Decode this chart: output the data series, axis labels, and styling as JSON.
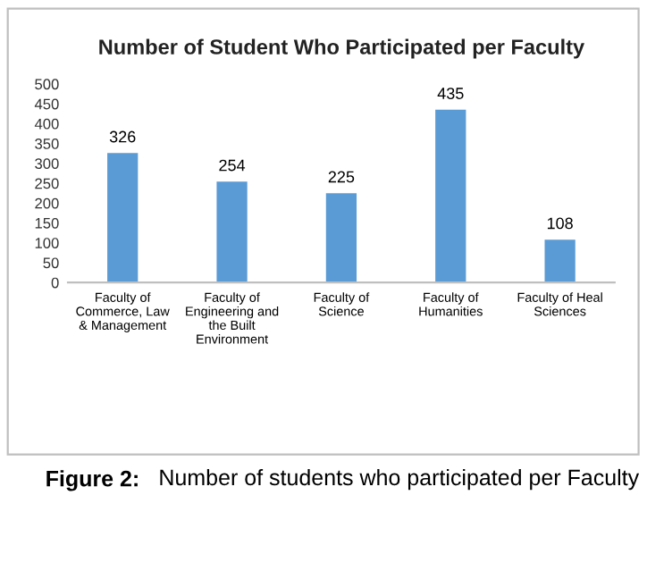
{
  "chart_data": {
    "type": "bar",
    "title": "Number of Student Who Participated per Faculty",
    "categories": [
      "Faculty of\nCommerce, Law\n& Management",
      "Faculty of\nEngineering and\nthe Built\nEnvironment",
      "Faculty of\nScience",
      "Faculty of\nHumanities",
      "Faculty of Heal\nSciences"
    ],
    "values": [
      326,
      254,
      225,
      435,
      108
    ],
    "color": "#5b9bd5",
    "ylim": [
      0,
      500
    ],
    "yticks": [
      0,
      50,
      100,
      150,
      200,
      250,
      300,
      350,
      400,
      450,
      500
    ],
    "grid": false,
    "data_labels": true,
    "annotations": [
      "Figure 2:",
      "Number of students who participated per Faculty"
    ]
  }
}
